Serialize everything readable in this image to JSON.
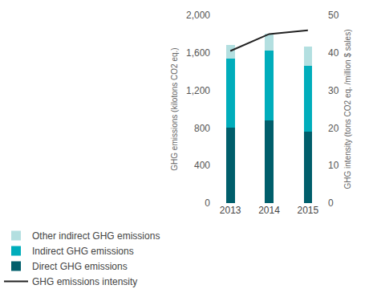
{
  "chart_data": {
    "type": "bar",
    "stacked": true,
    "categories": [
      "2013",
      "2014",
      "2015"
    ],
    "ylabel": "GHG emissions (kilotons CO2 eq.)",
    "y2label": "GHG intensity (tons CO2 eq. /million $ sales)",
    "ylim": [
      0,
      2000
    ],
    "yticks": [
      0,
      400,
      800,
      {
        "value": 1200,
        "label": "1,200"
      },
      {
        "value": 1600,
        "label": "1,600"
      },
      {
        "value": 2000,
        "label": "2,000"
      }
    ],
    "y2lim": [
      0,
      50
    ],
    "y2ticks": [
      0,
      10,
      20,
      30,
      40,
      50
    ],
    "grid": false,
    "legend": "bottom",
    "series": [
      {
        "name": "Other indirect GHG emissions",
        "color": "#b3dfe0",
        "values": [
          140,
          180,
          210
        ]
      },
      {
        "name": "Indirect GHG emissions",
        "color": "#00adbb",
        "values": [
          740,
          740,
          700
        ]
      },
      {
        "name": "Direct GHG emissions",
        "color": "#005e6b",
        "values": [
          800,
          880,
          760
        ]
      },
      {
        "name": "GHG emissions intensity",
        "type": "line",
        "axis": "y2",
        "color": "#222222",
        "values": [
          40.5,
          45,
          46
        ]
      }
    ]
  }
}
